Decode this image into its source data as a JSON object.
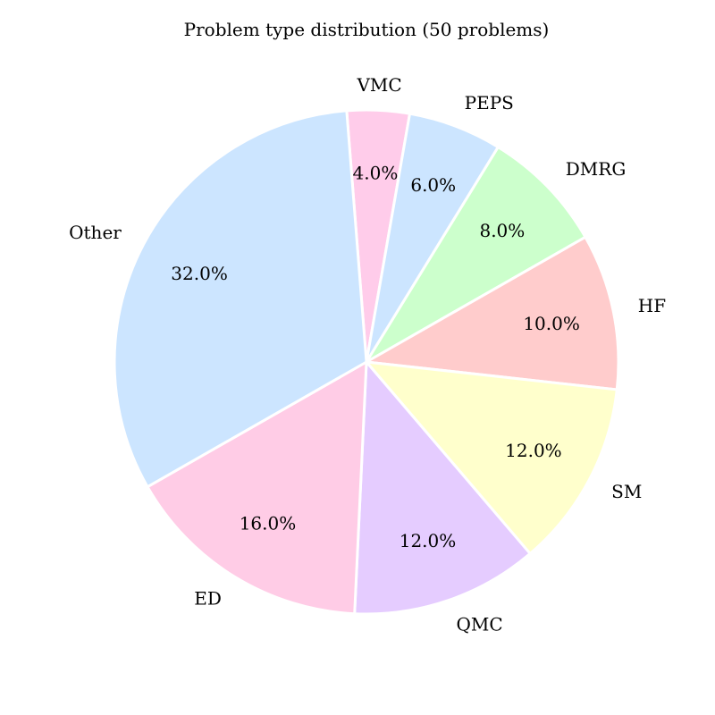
{
  "chart_data": {
    "type": "pie",
    "title": "Problem type distribution (50 problems)",
    "start_angle_deg": 90,
    "direction": "clockwise",
    "slices": [
      {
        "label": "VMC",
        "value": 2,
        "pct_label": "4.0%",
        "color": "#ffccea"
      },
      {
        "label": "PEPS",
        "value": 3,
        "pct_label": "6.0%",
        "color": "#cce5ff"
      },
      {
        "label": "DMRG",
        "value": 4,
        "pct_label": "8.0%",
        "color": "#ccffcc"
      },
      {
        "label": "HF",
        "value": 5,
        "pct_label": "10.0%",
        "color": "#ffcccc"
      },
      {
        "label": "SM",
        "value": 6,
        "pct_label": "12.0%",
        "color": "#ffffcc"
      },
      {
        "label": "QMC",
        "value": 6,
        "pct_label": "12.0%",
        "color": "#e5ccff"
      },
      {
        "label": "ED",
        "value": 8,
        "pct_label": "16.0%",
        "color": "#ffcce6"
      },
      {
        "label": "Other",
        "value": 16,
        "pct_label": "32.0%",
        "color": "#cce5ff"
      }
    ]
  }
}
